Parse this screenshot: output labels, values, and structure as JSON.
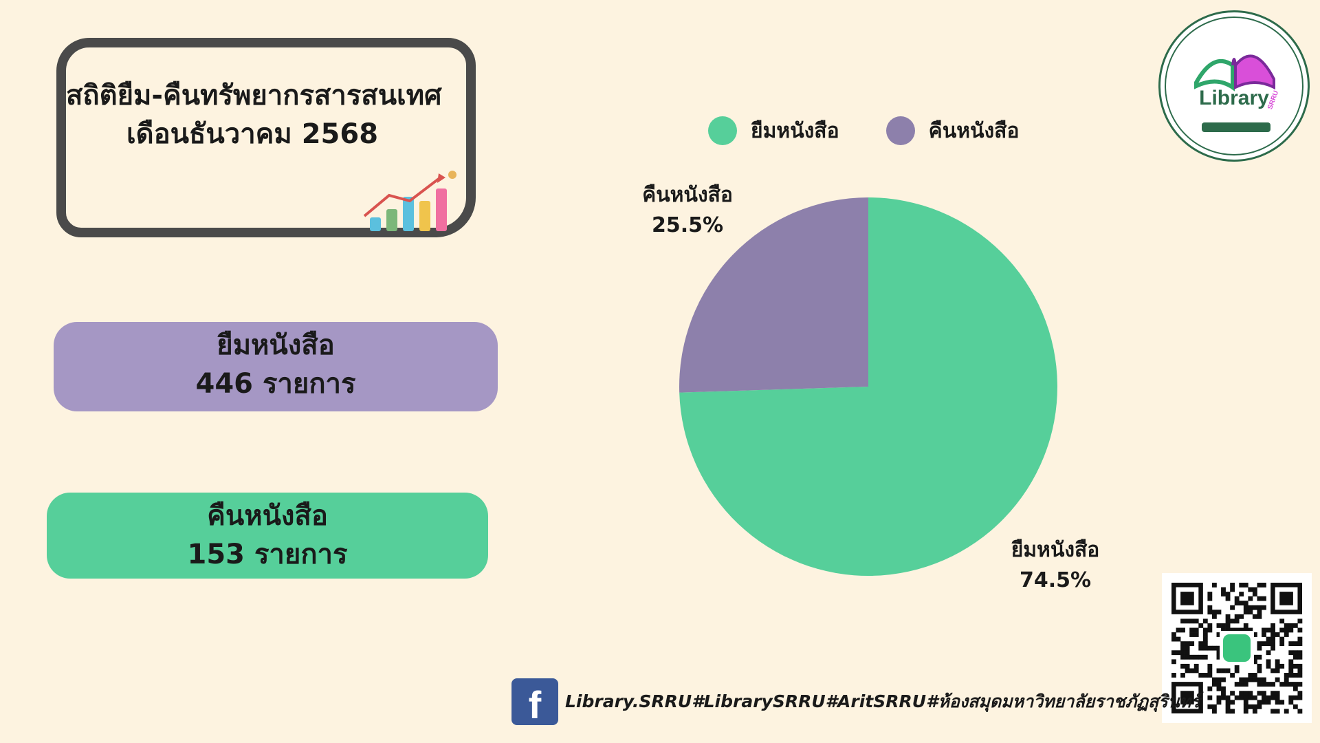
{
  "title": {
    "line1": "สถิติยืม-คืนทรัพยากรสารสนเทศ",
    "line2": "เดือนธันวาคม 2568"
  },
  "stats": {
    "borrow": {
      "label": "ยืมหนังสือ",
      "value": "446 รายการ",
      "color": "#a597c4"
    },
    "return": {
      "label": "คืนหนังสือ",
      "value": "153 รายการ",
      "color": "#56cf9a"
    }
  },
  "chart_data": {
    "type": "pie",
    "title": "",
    "legend_position": "top",
    "slices": [
      {
        "label": "ยืมหนังสือ",
        "value": 74.5,
        "display": "74.5%",
        "color": "#56cf9a"
      },
      {
        "label": "คืนหนังสือ",
        "value": 25.5,
        "display": "25.5%",
        "color": "#8d80ab"
      }
    ]
  },
  "logo": {
    "text": "Library",
    "subtext": "SRRU"
  },
  "footer": {
    "icon": "facebook-icon",
    "text": "Library.SRRU#LibrarySRRU#AritSRRU#ห้องสมุดมหาวิทยาลัยราชภัฏสุรินทร์"
  }
}
